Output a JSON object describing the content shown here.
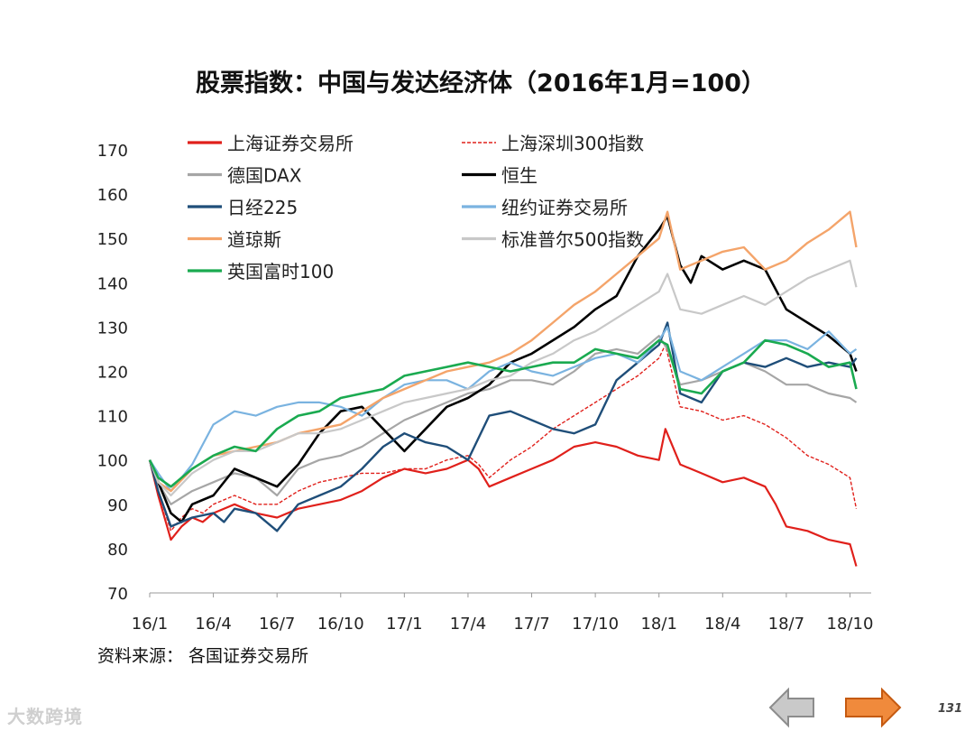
{
  "page_number": "131",
  "watermark": "大数跨境",
  "source_note": "资料来源：  各国证券交易所",
  "chart_data": {
    "type": "line",
    "title": "股票指数：中国与发达经济体（2016年1月=100）",
    "xlabel": "",
    "ylabel": "",
    "x_ticks": [
      "16/1",
      "16/4",
      "16/7",
      "16/10",
      "17/1",
      "17/4",
      "17/7",
      "17/10",
      "18/1",
      "18/4",
      "18/7",
      "18/10"
    ],
    "x_months": [
      0,
      3,
      6,
      9,
      12,
      15,
      18,
      21,
      24,
      27,
      30,
      33
    ],
    "xlim": [
      0,
      34
    ],
    "ylim": [
      70,
      170
    ],
    "y_ticks": [
      70,
      80,
      90,
      100,
      110,
      120,
      130,
      140,
      150,
      160,
      170
    ],
    "grid": false,
    "legend_position": "top-left, two columns",
    "series": [
      {
        "name": "上海证券交易所",
        "color": "#e0201b",
        "dash": "solid",
        "width": 2.2,
        "x": [
          0,
          0.4,
          1,
          1.5,
          2,
          2.5,
          3,
          4,
          5,
          6,
          7,
          8,
          9,
          10,
          11,
          12,
          13,
          14,
          15,
          15.5,
          16,
          17,
          18,
          19,
          20,
          21,
          22,
          23,
          24,
          24.3,
          25,
          26,
          27,
          28,
          29,
          29.5,
          30,
          31,
          32,
          33,
          33.3
        ],
        "y": [
          100,
          92,
          82,
          85,
          87,
          86,
          88,
          90,
          88,
          87,
          89,
          90,
          91,
          93,
          96,
          98,
          97,
          98,
          100,
          98,
          94,
          96,
          98,
          100,
          103,
          104,
          103,
          101,
          100,
          107,
          99,
          97,
          95,
          96,
          94,
          90,
          85,
          84,
          82,
          81,
          76
        ]
      },
      {
        "name": "上海深圳300指数",
        "color": "#e0201b",
        "dash": "dashed",
        "width": 1.4,
        "x": [
          0,
          0.4,
          1,
          1.5,
          2,
          2.5,
          3,
          4,
          5,
          6,
          7,
          8,
          9,
          10,
          11,
          12,
          13,
          14,
          15,
          15.5,
          16,
          17,
          18,
          19,
          20,
          21,
          22,
          23,
          24,
          24.3,
          25,
          26,
          27,
          28,
          29,
          30,
          31,
          32,
          33,
          33.3
        ],
        "y": [
          100,
          93,
          84,
          87,
          89,
          88,
          90,
          92,
          90,
          90,
          93,
          95,
          96,
          97,
          97,
          98,
          98,
          100,
          101,
          99,
          96,
          100,
          103,
          107,
          110,
          113,
          116,
          119,
          123,
          126,
          112,
          111,
          109,
          110,
          108,
          105,
          101,
          99,
          96,
          89
        ]
      },
      {
        "name": "德国DAX",
        "color": "#a6a6a6",
        "dash": "solid",
        "width": 2.2,
        "x": [
          0,
          0.5,
          1,
          2,
          3,
          4,
          5,
          6,
          7,
          8,
          9,
          10,
          11,
          12,
          13,
          14,
          15,
          16,
          17,
          18,
          19,
          20,
          21,
          22,
          23,
          24,
          24.4,
          25,
          26,
          27,
          28,
          29,
          30,
          31,
          32,
          33,
          33.3
        ],
        "y": [
          100,
          94,
          90,
          93,
          95,
          97,
          96,
          92,
          98,
          100,
          101,
          103,
          106,
          109,
          111,
          113,
          115,
          116,
          118,
          118,
          117,
          120,
          124,
          125,
          124,
          128,
          125,
          117,
          118,
          120,
          122,
          120,
          117,
          117,
          115,
          114,
          113
        ]
      },
      {
        "name": "恒生",
        "color": "#000000",
        "dash": "solid",
        "width": 2.6,
        "x": [
          0,
          0.4,
          1,
          1.5,
          2,
          3,
          4,
          5,
          6,
          7,
          8,
          9,
          10,
          11,
          12,
          13,
          14,
          15,
          16,
          17,
          18,
          19,
          20,
          21,
          22,
          23,
          24,
          24.4,
          25,
          25.5,
          26,
          27,
          28,
          29,
          30,
          31,
          32,
          33,
          33.3
        ],
        "y": [
          100,
          95,
          88,
          86,
          90,
          92,
          98,
          96,
          94,
          99,
          106,
          111,
          112,
          107,
          102,
          107,
          112,
          114,
          117,
          122,
          124,
          127,
          130,
          134,
          137,
          146,
          152,
          155,
          144,
          140,
          146,
          143,
          145,
          143,
          134,
          131,
          128,
          124,
          120
        ]
      },
      {
        "name": "日经225",
        "color": "#1f4e79",
        "dash": "solid",
        "width": 2.4,
        "x": [
          0,
          0.4,
          1,
          1.5,
          2,
          3,
          3.5,
          4,
          5,
          6,
          7,
          8,
          9,
          10,
          11,
          12,
          13,
          14,
          15,
          16,
          17,
          18,
          19,
          20,
          21,
          22,
          23,
          24,
          24.4,
          25,
          26,
          27,
          28,
          29,
          30,
          31,
          32,
          33,
          33.3
        ],
        "y": [
          100,
          93,
          85,
          86,
          87,
          88,
          86,
          89,
          88,
          84,
          90,
          92,
          94,
          98,
          103,
          106,
          104,
          103,
          100,
          110,
          111,
          109,
          107,
          106,
          108,
          118,
          122,
          126,
          131,
          115,
          113,
          120,
          122,
          121,
          123,
          121,
          122,
          121,
          123
        ]
      },
      {
        "name": "纽约证券交易所",
        "color": "#7ab3e0",
        "dash": "solid",
        "width": 2.2,
        "x": [
          0,
          0.4,
          1,
          2,
          3,
          4,
          5,
          6,
          7,
          8,
          9,
          10,
          11,
          12,
          13,
          14,
          15,
          16,
          17,
          18,
          19,
          20,
          21,
          22,
          23,
          24,
          24.4,
          25,
          26,
          27,
          28,
          29,
          30,
          31,
          32,
          33,
          33.3
        ],
        "y": [
          100,
          97,
          93,
          99,
          108,
          111,
          110,
          112,
          113,
          113,
          112,
          110,
          114,
          117,
          118,
          118,
          116,
          120,
          122,
          120,
          119,
          121,
          123,
          124,
          122,
          127,
          130,
          120,
          118,
          121,
          124,
          127,
          127,
          125,
          129,
          124,
          125
        ]
      },
      {
        "name": "道琼斯",
        "color": "#f4a46a",
        "dash": "solid",
        "width": 2.4,
        "x": [
          0,
          0.4,
          1,
          2,
          3,
          4,
          5,
          6,
          7,
          8,
          9,
          10,
          11,
          12,
          13,
          14,
          15,
          16,
          17,
          18,
          19,
          20,
          21,
          22,
          23,
          24,
          24.4,
          25,
          26,
          27,
          28,
          29,
          30,
          31,
          32,
          33,
          33.3
        ],
        "y": [
          100,
          95,
          93,
          98,
          101,
          102,
          103,
          104,
          106,
          107,
          108,
          111,
          114,
          116,
          118,
          120,
          121,
          122,
          124,
          127,
          131,
          135,
          138,
          142,
          146,
          150,
          156,
          143,
          145,
          147,
          148,
          143,
          145,
          149,
          152,
          156,
          148
        ]
      },
      {
        "name": "标准普尔500指数",
        "color": "#c8c8c8",
        "dash": "solid",
        "width": 2.2,
        "x": [
          0,
          0.4,
          1,
          2,
          3,
          4,
          5,
          6,
          7,
          8,
          9,
          10,
          11,
          12,
          13,
          14,
          15,
          16,
          17,
          18,
          19,
          20,
          21,
          22,
          23,
          24,
          24.4,
          25,
          26,
          27,
          28,
          29,
          30,
          31,
          32,
          33,
          33.3
        ],
        "y": [
          100,
          95,
          92,
          97,
          100,
          102,
          102,
          104,
          106,
          106,
          107,
          109,
          111,
          113,
          114,
          115,
          116,
          118,
          119,
          122,
          124,
          127,
          129,
          132,
          135,
          138,
          142,
          134,
          133,
          135,
          137,
          135,
          138,
          141,
          143,
          145,
          139
        ]
      },
      {
        "name": "英国富时100",
        "color": "#1aaa50",
        "dash": "solid",
        "width": 2.6,
        "x": [
          0,
          0.4,
          1,
          2,
          3,
          4,
          5,
          6,
          7,
          8,
          9,
          10,
          11,
          12,
          13,
          14,
          15,
          16,
          17,
          18,
          19,
          20,
          21,
          22,
          23,
          24,
          24.4,
          25,
          26,
          27,
          28,
          29,
          30,
          31,
          32,
          33,
          33.3
        ],
        "y": [
          100,
          96,
          94,
          98,
          101,
          103,
          102,
          107,
          110,
          111,
          114,
          115,
          116,
          119,
          120,
          121,
          122,
          121,
          120,
          121,
          122,
          122,
          125,
          124,
          123,
          127,
          126,
          116,
          115,
          120,
          122,
          127,
          126,
          124,
          121,
          122,
          116
        ]
      }
    ]
  }
}
